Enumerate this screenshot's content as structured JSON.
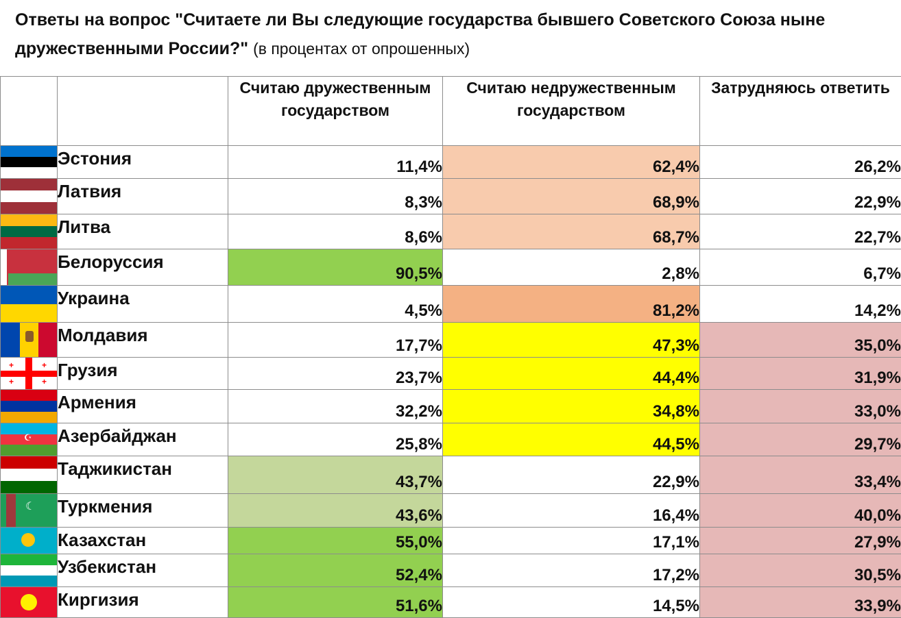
{
  "title": {
    "main": "Ответы на вопрос \"Считаете ли Вы следующие государства бывшего Советского Союза ныне дружественными России?\"",
    "sub": "(в процентах от опрошенных)"
  },
  "headers": [
    "Считаю дружественным государством",
    "Считаю недружественным государством",
    "Затрудняюсь ответить"
  ],
  "colors": {
    "friendly_strong": "#92d050",
    "friendly_light": "#c4d79b",
    "unfriendly_peach": "#f8cbad",
    "unfriendly_orange": "#f4b183",
    "unfriendly_yellow": "#ffff00",
    "unsure_pink": "#e6b8b7"
  },
  "rows": [
    {
      "country": "Эстония",
      "flag_icon": "estonia-flag-icon",
      "friendly": "11,4%",
      "unfriendly": "62,4%",
      "unsure": "26,2%"
    },
    {
      "country": "Латвия",
      "flag_icon": "latvia-flag-icon",
      "friendly": "8,3%",
      "unfriendly": "68,9%",
      "unsure": "22,9%"
    },
    {
      "country": "Литва",
      "flag_icon": "lithuania-flag-icon",
      "friendly": "8,6%",
      "unfriendly": "68,7%",
      "unsure": "22,7%"
    },
    {
      "country": "Белоруссия",
      "flag_icon": "belarus-flag-icon",
      "friendly": "90,5%",
      "unfriendly": "2,8%",
      "unsure": "6,7%"
    },
    {
      "country": "Украина",
      "flag_icon": "ukraine-flag-icon",
      "friendly": "4,5%",
      "unfriendly": "81,2%",
      "unsure": "14,2%"
    },
    {
      "country": "Молдавия",
      "flag_icon": "moldova-flag-icon",
      "friendly": "17,7%",
      "unfriendly": "47,3%",
      "unsure": "35,0%"
    },
    {
      "country": "Грузия",
      "flag_icon": "georgia-flag-icon",
      "friendly": "23,7%",
      "unfriendly": "44,4%",
      "unsure": "31,9%"
    },
    {
      "country": "Армения",
      "flag_icon": "armenia-flag-icon",
      "friendly": "32,2%",
      "unfriendly": "34,8%",
      "unsure": "33,0%"
    },
    {
      "country": "Азербайджан",
      "flag_icon": "azerbaijan-flag-icon",
      "friendly": "25,8%",
      "unfriendly": "44,5%",
      "unsure": "29,7%"
    },
    {
      "country": "Таджикистан",
      "flag_icon": "tajikistan-flag-icon",
      "friendly": "43,7%",
      "unfriendly": "22,9%",
      "unsure": "33,4%"
    },
    {
      "country": "Туркмения",
      "flag_icon": "turkmenistan-flag-icon",
      "friendly": "43,6%",
      "unfriendly": "16,4%",
      "unsure": "40,0%"
    },
    {
      "country": "Казахстан",
      "flag_icon": "kazakhstan-flag-icon",
      "friendly": "55,0%",
      "unfriendly": "17,1%",
      "unsure": "27,9%"
    },
    {
      "country": "Узбекистан",
      "flag_icon": "uzbekistan-flag-icon",
      "friendly": "52,4%",
      "unfriendly": "17,2%",
      "unsure": "30,5%"
    },
    {
      "country": "Киргизия",
      "flag_icon": "kyrgyzstan-flag-icon",
      "friendly": "51,6%",
      "unfriendly": "14,5%",
      "unsure": "33,9%"
    }
  ]
}
